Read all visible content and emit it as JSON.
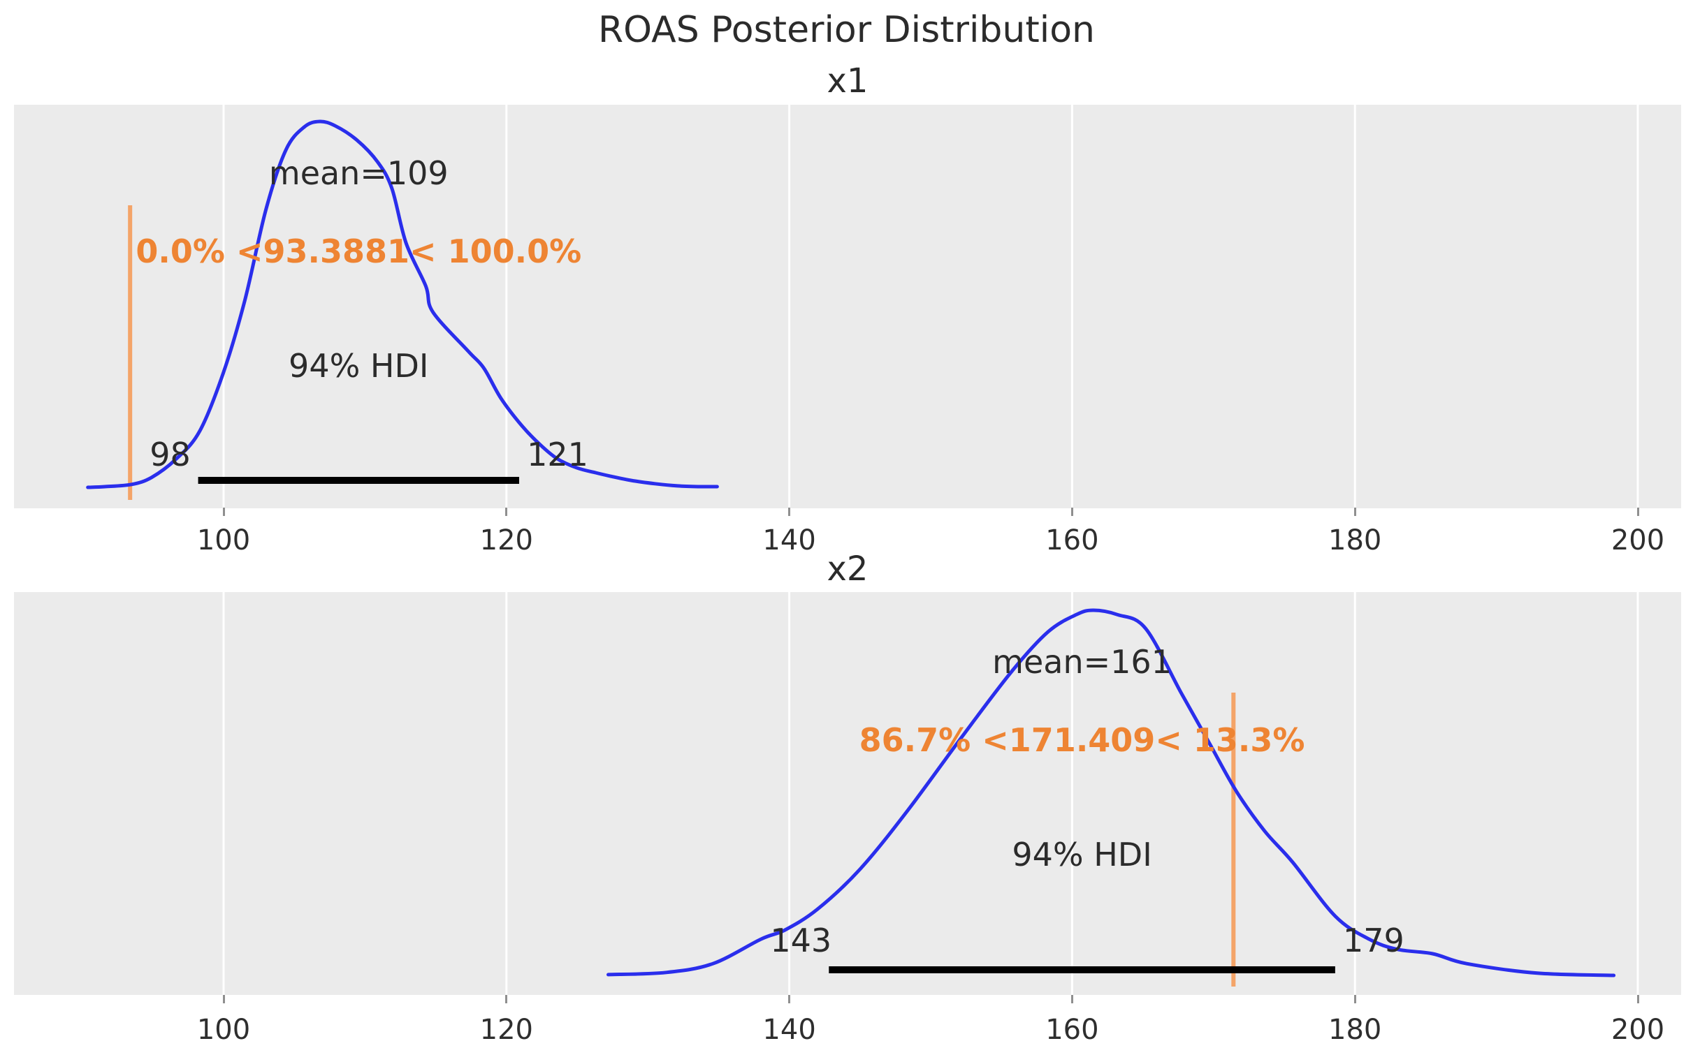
{
  "figure": {
    "title": "ROAS Posterior Distribution"
  },
  "colors": {
    "curve": "#2a2eec",
    "ref_line": "#f4a468",
    "ref_text": "#ee8433",
    "hdi_bar": "#000000",
    "panel_bg": "#ebebeb",
    "grid": "#ffffff",
    "text": "#2b2b2b"
  },
  "x_axis": {
    "ticks": [
      100,
      120,
      140,
      160,
      180,
      200
    ]
  },
  "chart_data": [
    {
      "type": "area",
      "subtype": "kde-posterior",
      "title": "x1",
      "mean": 109,
      "mean_label": "mean=109",
      "hdi_prob": "94%",
      "hdi_label": "94% HDI",
      "hdi": [
        98.2,
        120.9
      ],
      "hdi_lo_label": "98",
      "hdi_hi_label": "121",
      "ref_val": 93.3881,
      "ref_label": "0.0% <93.3881< 100.0%",
      "xlim": [
        85.2,
        203.1
      ],
      "x_ticks": [
        100,
        120,
        140,
        160,
        180,
        200
      ],
      "grid": "vertical-white-on-gray",
      "curve": {
        "x": [
          90.4,
          91.6,
          93.5,
          94.9,
          96.6,
          98.3,
          100.0,
          101.5,
          103.0,
          104.4,
          105.7,
          106.8,
          107.9,
          109.4,
          110.9,
          111.9,
          112.9,
          114.3,
          114.8,
          117.3,
          118.4,
          119.6,
          121.1,
          122.4,
          123.6,
          125.0,
          126.3,
          127.3,
          128.8,
          130.5,
          132.1,
          133.6,
          134.9
        ],
        "density": [
          0,
          0.002,
          0.008,
          0.027,
          0.076,
          0.153,
          0.315,
          0.511,
          0.76,
          0.922,
          0.985,
          1.0,
          0.988,
          0.95,
          0.889,
          0.817,
          0.668,
          0.55,
          0.479,
          0.372,
          0.326,
          0.244,
          0.168,
          0.116,
          0.078,
          0.053,
          0.04,
          0.031,
          0.019,
          0.01,
          0.004,
          0.002,
          0.002
        ]
      }
    },
    {
      "type": "area",
      "subtype": "kde-posterior",
      "title": "x2",
      "mean": 161,
      "mean_label": "mean=161",
      "hdi_prob": "94%",
      "hdi_label": "94% HDI",
      "hdi": [
        142.8,
        178.6
      ],
      "hdi_lo_label": "143",
      "hdi_hi_label": "179",
      "ref_val": 171.409,
      "ref_label": "86.7% <171.409< 13.3%",
      "xlim": [
        85.2,
        203.1
      ],
      "x_ticks": [
        100,
        120,
        140,
        160,
        180,
        200
      ],
      "grid": "vertical-white-on-gray",
      "curve": {
        "x": [
          127.2,
          131.3,
          134.6,
          138.0,
          139.7,
          142.0,
          145.0,
          148.4,
          152.4,
          155.8,
          158.3,
          160.3,
          161.5,
          163.2,
          165.2,
          167.7,
          169.7,
          171.6,
          173.6,
          175.6,
          178.6,
          181.0,
          183.0,
          185.5,
          187.9,
          192.9,
          198.3
        ],
        "density": [
          0.004,
          0.01,
          0.034,
          0.101,
          0.126,
          0.183,
          0.292,
          0.454,
          0.664,
          0.836,
          0.941,
          0.988,
          1.0,
          0.988,
          0.95,
          0.775,
          0.637,
          0.506,
          0.397,
          0.311,
          0.164,
          0.101,
          0.073,
          0.061,
          0.034,
          0.008,
          0.002
        ]
      }
    }
  ]
}
